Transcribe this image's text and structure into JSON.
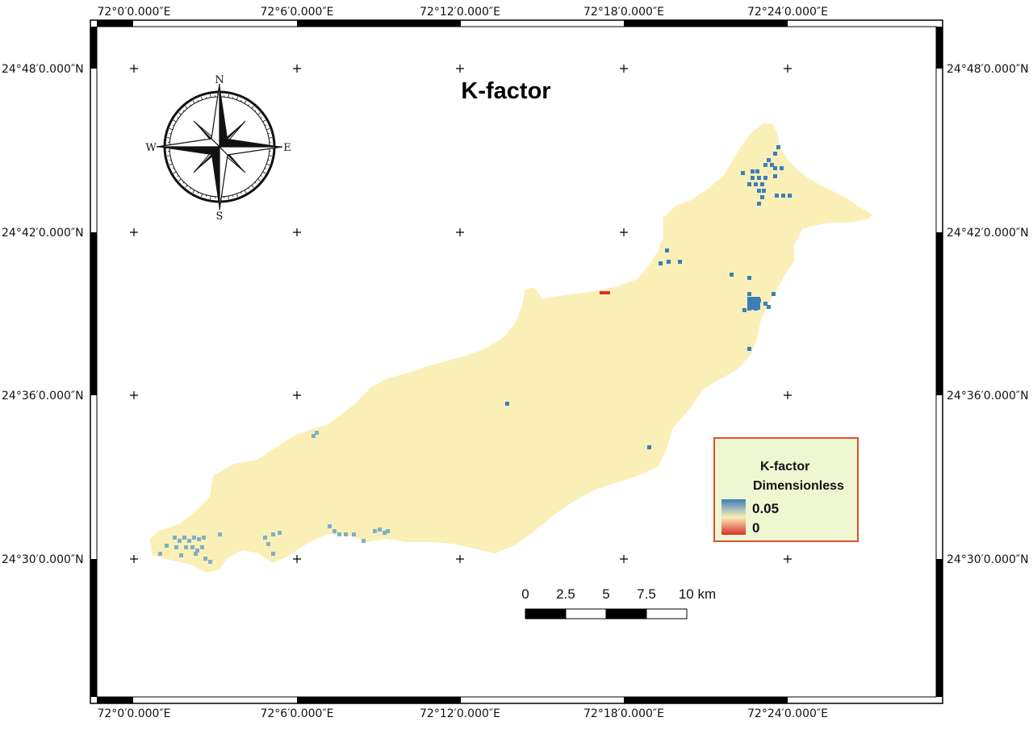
{
  "map": {
    "title": "K-factor",
    "top_lon_labels": [
      "72°0′0.000″E",
      "72°6′0.000″E",
      "72°12′0.000″E",
      "72°18′0.000″E",
      "72°24′0.000″E"
    ],
    "bottom_lon_labels": [
      "72°0′0.000″E",
      "72°6′0.000″E",
      "72°12′0.000″E",
      "72°18′0.000″E",
      "72°24′0.000″E"
    ],
    "left_lat_labels": [
      "24°48′0.000″N",
      "24°42′0.000″N",
      "24°36′0.000″N",
      "24°30′0.000″N"
    ],
    "right_lat_labels": [
      "24°48′0.000″N",
      "24°42′0.000″N",
      "24°36′0.000″N",
      "24°30′0.000″N"
    ]
  },
  "compass": {
    "north": "N",
    "south": "S",
    "east": "E",
    "west": "W"
  },
  "legend": {
    "title": "K-factor",
    "unit": "Dimensionless",
    "high_label": "0.05",
    "low_label": "0",
    "high_color": "#3a7fb8",
    "low_color": "#d7302a",
    "mid_color": "#fbefb8",
    "border_color": "#e0522a",
    "background_color": "#eff7d2"
  },
  "scale_bar": {
    "labels": [
      "0",
      "2.5",
      "5",
      "7.5",
      "10 km"
    ]
  },
  "colors": {
    "basin_fill": "#fbefb8",
    "high_k": "#3a7fb8",
    "mid_high_k": "#7fb0c9",
    "low_k": "#d7302a"
  }
}
